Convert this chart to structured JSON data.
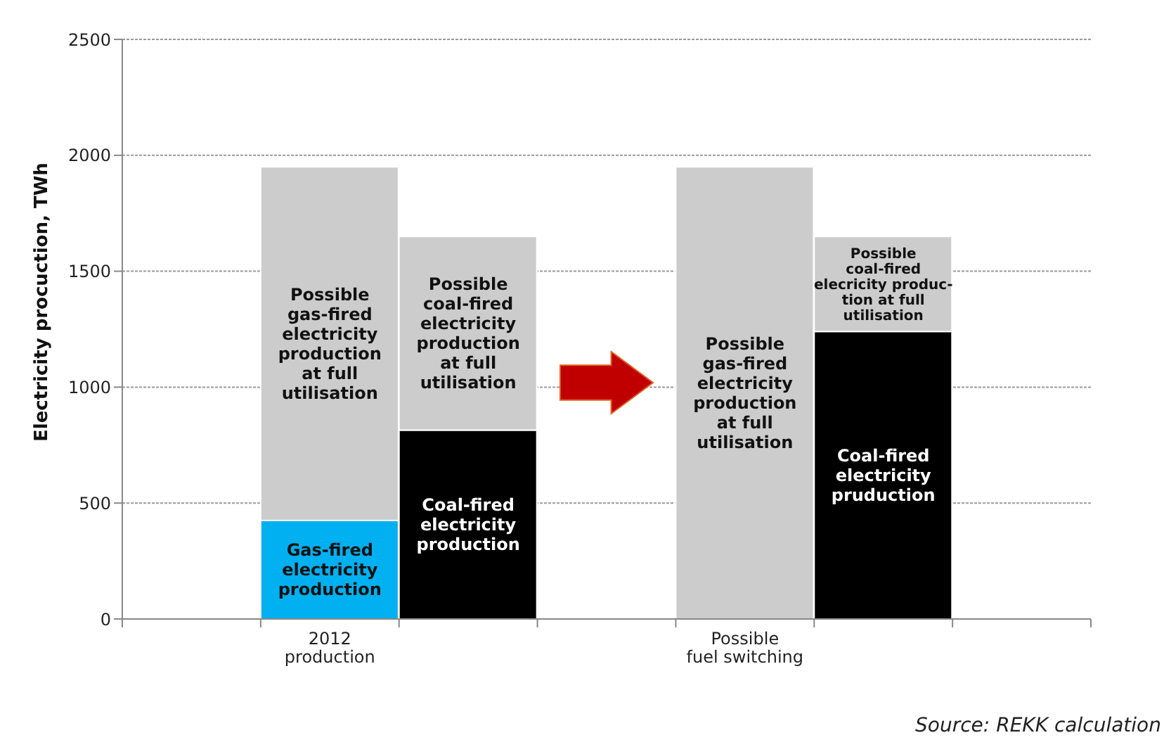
{
  "chart_data": {
    "type": "bar",
    "stacked": true,
    "ylabel": "Electricity procuction, TWh",
    "categories": [
      null,
      "2012\nproduction",
      null,
      null,
      "Possible\nfuel switching",
      null,
      null
    ],
    "series": [
      {
        "colors": [
          null,
          "#00b0f0",
          "#000000",
          null,
          null,
          "#000000",
          null
        ],
        "values": [
          null,
          425,
          815,
          null,
          null,
          1240,
          null
        ],
        "value_labels": [
          null,
          "Gas-fired\nelectricity\nproduction",
          "Coal-fired\nelectricity\nproduction",
          null,
          null,
          "Coal-fired\nelectricity\npruduction",
          null
        ]
      },
      {
        "colors": [
          null,
          "#cccccc",
          "#cccccc",
          null,
          "#cccccc",
          "#cccccc",
          null
        ],
        "values": [
          null,
          1525,
          835,
          null,
          1950,
          410,
          null
        ],
        "value_labels": [
          null,
          "Possible\ngas-fired\nelectricity\nproduction\nat full\nutilisation",
          "Possible\ncoal-fired\nelectricity\nproduction\nat full\nutilisation",
          null,
          "Possible\ngas-fired\nelectricity\nproduction\nat full\nutilisation",
          "Possible\ncoal-fired\nelecricity produc-\ntion at full\nutilisation",
          null
        ]
      }
    ],
    "ylim": [
      0,
      2500
    ],
    "yticks": [
      0,
      500,
      1000,
      1500,
      2000,
      2500
    ],
    "grid": "y",
    "legend": false,
    "annotations": [
      "Source: REKK calculation"
    ]
  }
}
